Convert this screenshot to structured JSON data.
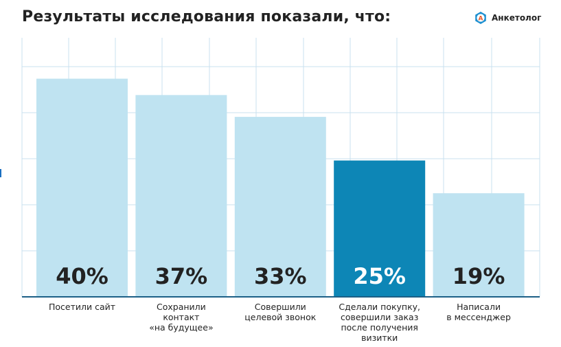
{
  "header": {
    "title": "Результаты исследования показали, что:",
    "logo_text": "Анкетолог",
    "logo_letter": "А"
  },
  "colors": {
    "bar_default": "#bfe3f1",
    "bar_highlight": "#0d86b6",
    "grid": "#c8e1ef",
    "axis": "#1c5f86",
    "label_dark": "#222222",
    "label_light": "#ffffff"
  },
  "chart_data": {
    "type": "bar",
    "title": "Результаты исследования показали, что:",
    "categories": [
      [
        "Посетили сайт"
      ],
      [
        "Сохранили",
        "контакт",
        "«на будущее»"
      ],
      [
        "Совершили",
        "целевой звонок"
      ],
      [
        "Сделали покупку,",
        "совершили заказ",
        "после получения",
        "визитки"
      ],
      [
        "Написали",
        "в мессенджер"
      ]
    ],
    "values": [
      40,
      37,
      33,
      25,
      19
    ],
    "value_labels": [
      "40%",
      "37%",
      "33%",
      "25%",
      "19%"
    ],
    "highlight_index": 3,
    "ylim": [
      0,
      47.5
    ],
    "grid": true,
    "legend": "none"
  }
}
